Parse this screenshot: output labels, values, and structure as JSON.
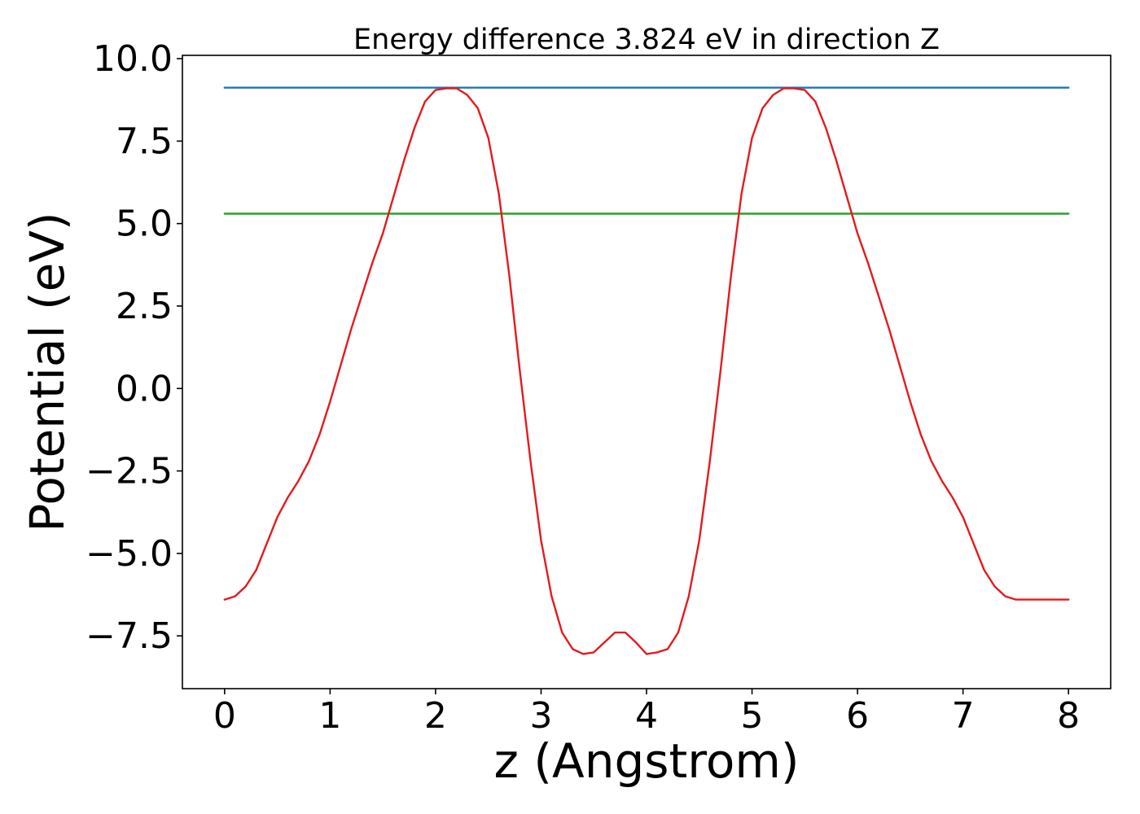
{
  "chart_data": {
    "type": "line",
    "title": "Energy difference 3.824 eV in direction Z",
    "xlabel": "z (Angstrom)",
    "ylabel": "Potential (eV)",
    "xlim": [
      -0.4,
      8.4
    ],
    "ylim": [
      -9.1,
      10.1
    ],
    "grid": false,
    "x_ticks": [
      0,
      1,
      2,
      3,
      4,
      5,
      6,
      7,
      8
    ],
    "x_tick_labels": [
      "0",
      "1",
      "2",
      "3",
      "4",
      "5",
      "6",
      "7",
      "8"
    ],
    "y_ticks": [
      10.0,
      7.5,
      5.0,
      2.5,
      0.0,
      -2.5,
      -5.0,
      -7.5
    ],
    "y_tick_labels": [
      "10.0",
      "7.5",
      "5.0",
      "2.5",
      "0.0",
      "−2.5",
      "−5.0",
      "−7.5"
    ],
    "series": [
      {
        "color": "#1f77b4",
        "x": [
          0,
          8
        ],
        "y": [
          9.12,
          9.12
        ]
      },
      {
        "color": "#2ca02c",
        "x": [
          0,
          8
        ],
        "y": [
          5.3,
          5.3
        ]
      },
      {
        "color": "#e41a1c",
        "x": [
          0,
          0.1,
          0.2,
          0.3,
          0.4,
          0.5,
          0.6,
          0.7,
          0.8,
          0.9,
          1.0,
          1.1,
          1.2,
          1.3,
          1.4,
          1.5,
          1.6,
          1.7,
          1.8,
          1.9,
          2.0,
          2.1,
          2.2,
          2.3,
          2.4,
          2.5,
          2.6,
          2.7,
          2.8,
          2.9,
          3.0,
          3.1,
          3.2,
          3.3,
          3.4,
          3.5,
          3.6,
          3.7,
          3.8,
          3.9,
          4.0,
          4.1,
          4.2,
          4.3,
          4.4,
          4.5,
          4.6,
          4.7,
          4.8,
          4.9,
          5.0,
          5.1,
          5.2,
          5.3,
          5.4,
          5.5,
          5.6,
          5.7,
          5.8,
          5.9,
          6.0,
          6.1,
          6.2,
          6.3,
          6.4,
          6.5,
          6.6,
          6.7,
          6.8,
          6.9,
          7.0,
          7.1,
          7.2,
          7.3,
          7.4,
          7.5,
          7.6,
          7.7,
          7.8,
          7.9,
          8.0
        ],
        "y": [
          -6.4,
          -6.3,
          -6.0,
          -5.5,
          -4.7,
          -3.9,
          -3.3,
          -2.8,
          -2.2,
          -1.4,
          -0.4,
          0.7,
          1.8,
          2.8,
          3.8,
          4.7,
          5.8,
          6.9,
          7.9,
          8.7,
          9.05,
          9.1,
          9.1,
          8.9,
          8.5,
          7.6,
          5.9,
          3.4,
          0.5,
          -2.2,
          -4.6,
          -6.3,
          -7.4,
          -7.9,
          -8.05,
          -8.0,
          -7.7,
          -7.4,
          -7.4,
          -7.7,
          -8.05,
          -8.0,
          -7.9,
          -7.4,
          -6.3,
          -4.6,
          -2.2,
          0.5,
          3.4,
          5.9,
          7.6,
          8.5,
          8.9,
          9.1,
          9.1,
          9.05,
          8.7,
          7.9,
          6.9,
          5.8,
          4.7,
          3.8,
          2.8,
          1.8,
          0.7,
          -0.4,
          -1.4,
          -2.2,
          -2.8,
          -3.3,
          -3.9,
          -4.7,
          -5.5,
          -6.0,
          -6.3,
          -6.4,
          -6.4,
          -6.4,
          -6.4,
          -6.4,
          -6.4
        ]
      }
    ]
  }
}
